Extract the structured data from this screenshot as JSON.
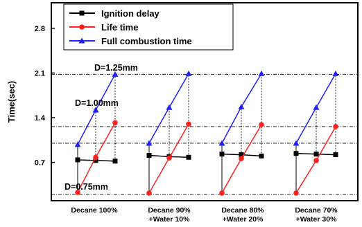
{
  "chart_data": {
    "type": "line",
    "ylabel": "Time(sec)",
    "xlabel": "",
    "ylim": [
      0.1,
      3.2
    ],
    "yticks": [
      "0.7",
      "1.4",
      "2.1",
      "2.8"
    ],
    "categories": [
      [
        "Decane 100%"
      ],
      [
        "Decane 90%",
        "+Water 10%"
      ],
      [
        "Decane 80%",
        "+Water 20%"
      ],
      [
        "Decane 70%",
        "+Water 30%"
      ]
    ],
    "x_per_group": [
      "D=0.75mm",
      "D=1.00mm",
      "D=1.25mm"
    ],
    "series": [
      {
        "name": "Ignition delay",
        "color": "#000000",
        "marker": "square",
        "values": [
          [
            0.74,
            0.73,
            0.72
          ],
          [
            0.81,
            0.79,
            0.78
          ],
          [
            0.83,
            0.82,
            0.8
          ],
          [
            0.84,
            0.83,
            0.82
          ]
        ]
      },
      {
        "name": "Life time",
        "color": "#ff2020",
        "marker": "circle",
        "values": [
          [
            0.23,
            0.78,
            1.32
          ],
          [
            0.22,
            0.77,
            1.3
          ],
          [
            0.22,
            0.76,
            1.29
          ],
          [
            0.22,
            0.73,
            1.26
          ]
        ]
      },
      {
        "name": "Full combustion time",
        "color": "#1f1fff",
        "marker": "triangle",
        "values": [
          [
            0.98,
            1.52,
            2.08
          ],
          [
            1.0,
            1.56,
            2.09
          ],
          [
            1.0,
            1.57,
            2.09
          ],
          [
            1.0,
            1.56,
            2.09
          ]
        ]
      }
    ],
    "reference_lines": [
      0.2,
      1.0,
      1.26,
      2.08
    ],
    "annotations": [
      "D=1.25mm",
      "D=1.00mm",
      "D=0.75mm"
    ],
    "legend_position": "top-left",
    "grid": false
  }
}
